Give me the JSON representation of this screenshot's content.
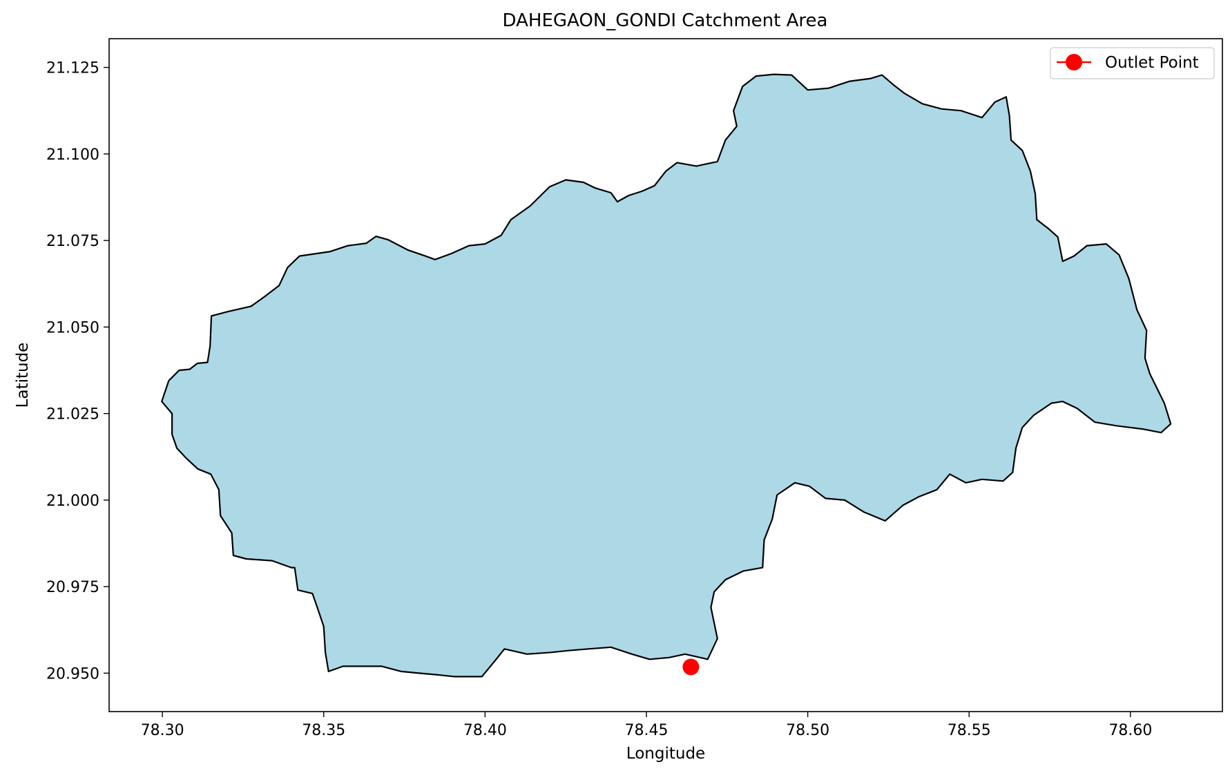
{
  "title": "DAHEGAON_GONDI Catchment Area",
  "xlabel": "Longitude",
  "ylabel": "Latitude",
  "legend": {
    "label": "Outlet Point",
    "placement": "top-right"
  },
  "colors": {
    "catchment_fill": "#add8e6",
    "catchment_edge": "#000000",
    "outlet": "#ff0000",
    "axes": "#000000"
  },
  "chart_data": {
    "type": "map",
    "title": "DAHEGAON_GONDI Catchment Area",
    "xlabel": "Longitude",
    "ylabel": "Latitude",
    "xlim": [
      78.2835,
      78.6285
    ],
    "ylim": [
      20.9389,
      21.1333
    ],
    "xticks": [
      78.3,
      78.35,
      78.4,
      78.45,
      78.5,
      78.55,
      78.6
    ],
    "xtick_labels": [
      "78.30",
      "78.35",
      "78.40",
      "78.45",
      "78.50",
      "78.55",
      "78.60"
    ],
    "yticks": [
      20.95,
      20.975,
      21.0,
      21.025,
      21.05,
      21.075,
      21.1,
      21.125
    ],
    "ytick_labels": [
      "20.950",
      "20.975",
      "21.000",
      "21.025",
      "21.050",
      "21.075",
      "21.100",
      "21.125"
    ],
    "grid": false,
    "outlet_point": {
      "lon": 78.4638,
      "lat": 20.9518
    },
    "catchment_boundary": [
      [
        78.2998,
        21.0285
      ],
      [
        78.302,
        21.0345
      ],
      [
        78.3052,
        21.0375
      ],
      [
        78.3085,
        21.0378
      ],
      [
        78.3108,
        21.0395
      ],
      [
        78.314,
        21.0398
      ],
      [
        78.3148,
        21.0445
      ],
      [
        78.3152,
        21.0532
      ],
      [
        78.3205,
        21.0545
      ],
      [
        78.3275,
        21.056
      ],
      [
        78.332,
        21.059
      ],
      [
        78.3362,
        21.062
      ],
      [
        78.3388,
        21.0672
      ],
      [
        78.3425,
        21.0705
      ],
      [
        78.352,
        21.0718
      ],
      [
        78.3575,
        21.0735
      ],
      [
        78.3632,
        21.0742
      ],
      [
        78.3662,
        21.0762
      ],
      [
        78.37,
        21.0752
      ],
      [
        78.3762,
        21.0722
      ],
      [
        78.3815,
        21.0705
      ],
      [
        78.3845,
        21.0695
      ],
      [
        78.3895,
        21.0712
      ],
      [
        78.395,
        21.0735
      ],
      [
        78.4,
        21.074
      ],
      [
        78.405,
        21.0765
      ],
      [
        78.408,
        21.081
      ],
      [
        78.414,
        21.085
      ],
      [
        78.42,
        21.0905
      ],
      [
        78.425,
        21.0925
      ],
      [
        78.4305,
        21.0918
      ],
      [
        78.434,
        21.0902
      ],
      [
        78.439,
        21.0888
      ],
      [
        78.441,
        21.0862
      ],
      [
        78.4445,
        21.088
      ],
      [
        78.4485,
        21.0892
      ],
      [
        78.4525,
        21.0908
      ],
      [
        78.456,
        21.095
      ],
      [
        78.4595,
        21.0975
      ],
      [
        78.4655,
        21.0965
      ],
      [
        78.472,
        21.0978
      ],
      [
        78.4745,
        21.104
      ],
      [
        78.478,
        21.108
      ],
      [
        78.477,
        21.1125
      ],
      [
        78.4798,
        21.1195
      ],
      [
        78.484,
        21.1225
      ],
      [
        78.4895,
        21.123
      ],
      [
        78.495,
        21.1228
      ],
      [
        78.5,
        21.1185
      ],
      [
        78.5065,
        21.119
      ],
      [
        78.513,
        21.121
      ],
      [
        78.5195,
        21.1218
      ],
      [
        78.523,
        21.1228
      ],
      [
        78.5265,
        21.12
      ],
      [
        78.53,
        21.1175
      ],
      [
        78.5355,
        21.1145
      ],
      [
        78.5415,
        21.113
      ],
      [
        78.5475,
        21.1125
      ],
      [
        78.554,
        21.1105
      ],
      [
        78.558,
        21.115
      ],
      [
        78.5615,
        21.1165
      ],
      [
        78.5625,
        21.111
      ],
      [
        78.563,
        21.104
      ],
      [
        78.5665,
        21.101
      ],
      [
        78.569,
        21.095
      ],
      [
        78.5705,
        21.0885
      ],
      [
        78.571,
        21.081
      ],
      [
        78.5745,
        21.0785
      ],
      [
        78.5775,
        21.076
      ],
      [
        78.579,
        21.069
      ],
      [
        78.5825,
        21.0705
      ],
      [
        78.5865,
        21.0735
      ],
      [
        78.5925,
        21.074
      ],
      [
        78.5965,
        21.0708
      ],
      [
        78.5995,
        21.064
      ],
      [
        78.602,
        21.055
      ],
      [
        78.605,
        21.049
      ],
      [
        78.6045,
        21.041
      ],
      [
        78.606,
        21.0365
      ],
      [
        78.6105,
        21.028
      ],
      [
        78.6125,
        21.022
      ],
      [
        78.6095,
        21.0195
      ],
      [
        78.604,
        21.0205
      ],
      [
        78.5955,
        21.0215
      ],
      [
        78.589,
        21.0225
      ],
      [
        78.5835,
        21.0265
      ],
      [
        78.579,
        21.0285
      ],
      [
        78.5755,
        21.028
      ],
      [
        78.57,
        21.0245
      ],
      [
        78.5665,
        21.021
      ],
      [
        78.5645,
        21.015
      ],
      [
        78.5635,
        21.008
      ],
      [
        78.5605,
        21.0055
      ],
      [
        78.554,
        21.006
      ],
      [
        78.549,
        21.005
      ],
      [
        78.544,
        21.0075
      ],
      [
        78.54,
        21.003
      ],
      [
        78.5345,
        21.001
      ],
      [
        78.5295,
        20.9985
      ],
      [
        78.524,
        20.994
      ],
      [
        78.5175,
        20.9965
      ],
      [
        78.5115,
        21.0
      ],
      [
        78.5055,
        21.0005
      ],
      [
        78.5005,
        21.004
      ],
      [
        78.496,
        21.005
      ],
      [
        78.4905,
        21.0015
      ],
      [
        78.489,
        20.9945
      ],
      [
        78.4865,
        20.9885
      ],
      [
        78.486,
        20.9805
      ],
      [
        78.48,
        20.9795
      ],
      [
        78.4745,
        20.977
      ],
      [
        78.471,
        20.9735
      ],
      [
        78.47,
        20.969
      ],
      [
        78.472,
        20.96
      ],
      [
        78.469,
        20.954
      ],
      [
        78.462,
        20.9555
      ],
      [
        78.457,
        20.9545
      ],
      [
        78.451,
        20.954
      ],
      [
        78.4455,
        20.9555
      ],
      [
        78.439,
        20.9575
      ],
      [
        78.432,
        20.957
      ],
      [
        78.4255,
        20.9565
      ],
      [
        78.4205,
        20.956
      ],
      [
        78.413,
        20.9555
      ],
      [
        78.406,
        20.957
      ],
      [
        78.403,
        20.9535
      ],
      [
        78.399,
        20.949
      ],
      [
        78.395,
        20.949
      ],
      [
        78.3905,
        20.949
      ],
      [
        78.3855,
        20.9495
      ],
      [
        78.3795,
        20.95
      ],
      [
        78.374,
        20.9505
      ],
      [
        78.368,
        20.952
      ],
      [
        78.3615,
        20.952
      ],
      [
        78.356,
        20.952
      ],
      [
        78.3515,
        20.9505
      ],
      [
        78.3505,
        20.956
      ],
      [
        78.35,
        20.9635
      ],
      [
        78.348,
        20.969
      ],
      [
        78.3465,
        20.973
      ],
      [
        78.342,
        20.974
      ],
      [
        78.341,
        20.9805
      ],
      [
        78.34,
        20.9805
      ],
      [
        78.334,
        20.9825
      ],
      [
        78.326,
        20.983
      ],
      [
        78.322,
        20.984
      ],
      [
        78.3215,
        20.9905
      ],
      [
        78.318,
        20.9955
      ],
      [
        78.3175,
        21.003
      ],
      [
        78.315,
        21.0075
      ],
      [
        78.311,
        21.009
      ],
      [
        78.3075,
        21.012
      ],
      [
        78.3045,
        21.015
      ],
      [
        78.303,
        21.019
      ],
      [
        78.303,
        21.025
      ]
    ]
  }
}
